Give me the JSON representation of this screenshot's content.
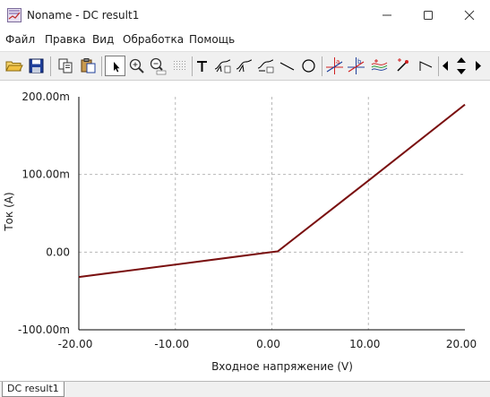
{
  "window": {
    "title": "Noname - DC result1",
    "app_icon": "chart-app-icon",
    "controls": [
      "minimize-icon",
      "maximize-icon",
      "close-icon"
    ]
  },
  "menu": {
    "items": [
      "Файл",
      "Правка",
      "Вид",
      "Обработка",
      "Помощь"
    ]
  },
  "toolbar": {
    "buttons": [
      "open-folder-icon",
      "save-icon",
      "copy-icon",
      "paste-icon",
      "pointer-icon",
      "zoom-in-icon",
      "zoom-out-icon",
      "grid-icon",
      "text-icon",
      "curve-tool-icon",
      "curve-tool-2-icon",
      "curve-tool-3-icon",
      "line-icon",
      "circle-icon",
      "cursor-a-icon",
      "cursor-b-icon",
      "multi-curve-icon",
      "probe-icon",
      "step-icon",
      "scroll-left-icon",
      "scroll-updown-icon",
      "scroll-right-icon"
    ]
  },
  "chart_data": {
    "type": "line",
    "xlabel": "Входное напряжение (V)",
    "ylabel": "Ток (A)",
    "xlim": [
      -20,
      20
    ],
    "ylim": [
      -100,
      200
    ],
    "x_ticks": [
      "-20.00",
      "-10.00",
      "0.00",
      "10.00",
      "20.00"
    ],
    "y_ticks": [
      "-100.00m",
      "0.00",
      "100.00m",
      "200.00m"
    ],
    "grid": true,
    "series": [
      {
        "color": "#7a1010",
        "x": [
          -20,
          -10,
          0,
          0.6,
          10,
          20
        ],
        "y": [
          -32,
          -16,
          0,
          1,
          92,
          190
        ]
      }
    ]
  },
  "statusbar": {
    "tab_label": "DC result1"
  }
}
